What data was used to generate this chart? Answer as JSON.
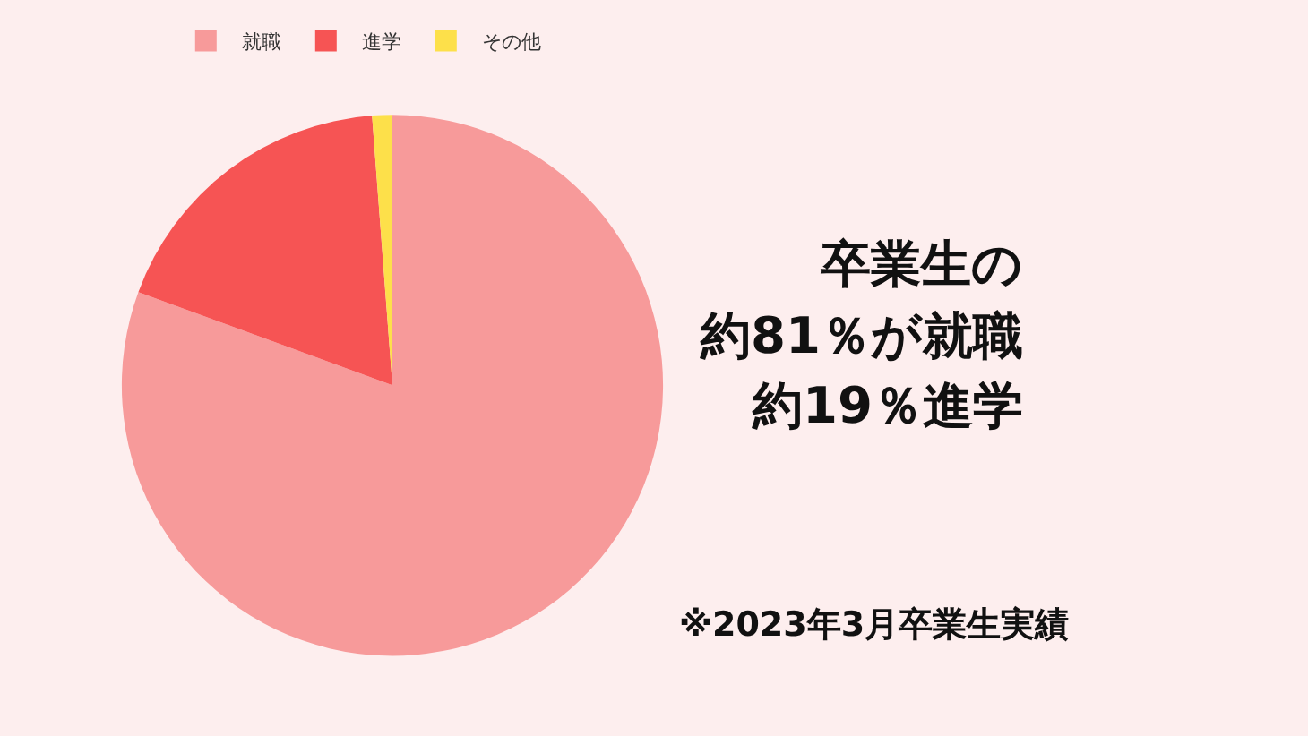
{
  "chart_data": {
    "type": "pie",
    "categories": [
      "就職",
      "進学",
      "その他"
    ],
    "values": [
      80.6,
      18.2,
      1.2
    ],
    "colors": [
      "#f79a9a",
      "#f65454",
      "#fde04a"
    ],
    "legend": "top left",
    "annotations": [
      "卒業生の",
      "約81％が就職",
      "約19％進学",
      "※2023年3月卒業生実績"
    ]
  }
}
